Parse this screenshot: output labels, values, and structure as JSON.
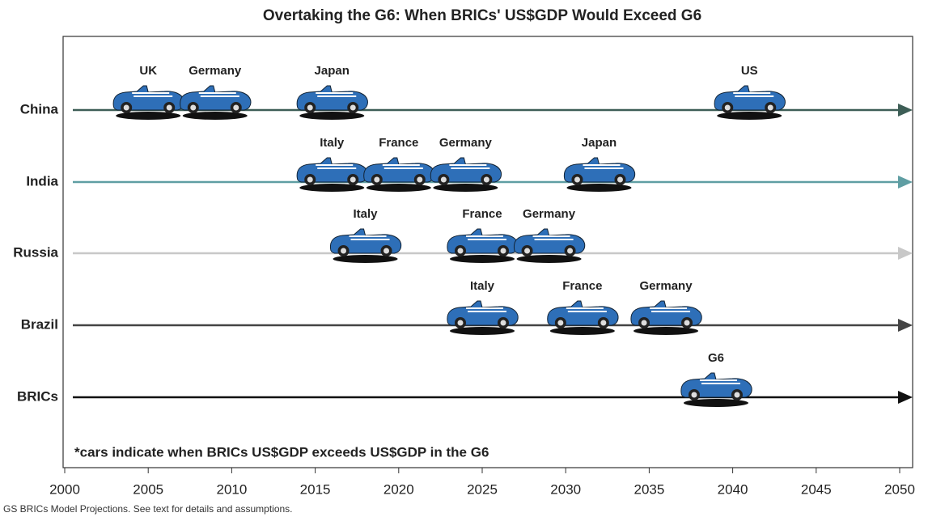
{
  "chart_data": {
    "type": "timeline",
    "title": "Overtaking the G6: When BRICs' US$GDP Would Exceed G6",
    "note": "*cars indicate when BRICs US$GDP exceeds US$GDP in the G6",
    "source": "GS BRICs Model Projections. See text for details and assumptions.",
    "xlim": [
      2000,
      2050
    ],
    "xticks": [
      2000,
      2005,
      2010,
      2015,
      2020,
      2025,
      2030,
      2035,
      2040,
      2045,
      2050
    ],
    "car_color": "#2e6fb8",
    "series": [
      {
        "name": "China",
        "color": "#3d5e56",
        "labels": [
          "UK",
          "Germany",
          "Japan",
          "US"
        ],
        "x": [
          2005,
          2009,
          2016,
          2041
        ]
      },
      {
        "name": "India",
        "color": "#5f9ea3",
        "labels": [
          "Italy",
          "France",
          "Germany",
          "Japan"
        ],
        "x": [
          2016,
          2020,
          2024,
          2032
        ]
      },
      {
        "name": "Russia",
        "color": "#c8c8c8",
        "labels": [
          "Italy",
          "France",
          "Germany"
        ],
        "x": [
          2018,
          2025,
          2029
        ]
      },
      {
        "name": "Brazil",
        "color": "#444444",
        "labels": [
          "Italy",
          "France",
          "Germany"
        ],
        "x": [
          2025,
          2031,
          2036
        ]
      },
      {
        "name": "BRICs",
        "color": "#111111",
        "labels": [
          "G6"
        ],
        "x": [
          2039
        ]
      }
    ]
  }
}
